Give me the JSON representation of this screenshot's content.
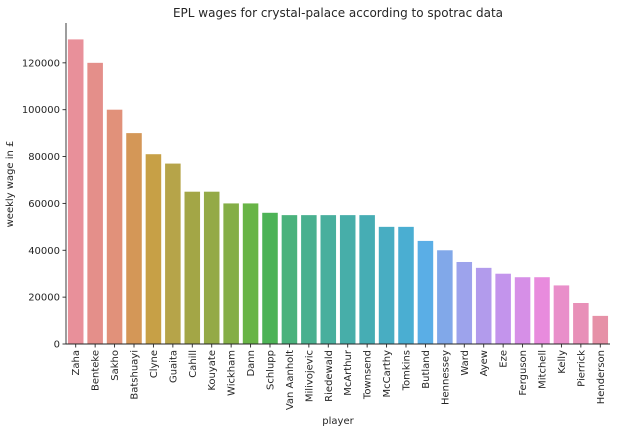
{
  "chart_data": {
    "type": "bar",
    "title": "EPL wages for crystal-palace according to spotrac data",
    "xlabel": "player",
    "ylabel": "weekly wage in £",
    "ylim": [
      0,
      137000
    ],
    "yticks": [
      0,
      20000,
      40000,
      60000,
      80000,
      100000,
      120000
    ],
    "grid": false,
    "categories": [
      "Zaha",
      "Benteke",
      "Sakho",
      "Batshuayi",
      "Clyne",
      "Guaita",
      "Cahill",
      "Kouyate",
      "Wickham",
      "Dann",
      "Schlupp",
      "Van Aanholt",
      "Milivojevic",
      "Riedewald",
      "McArthur",
      "Townsend",
      "McCarthy",
      "Tomkins",
      "Butland",
      "Hennessey",
      "Ward",
      "Ayew",
      "Eze",
      "Ferguson",
      "Mitchell",
      "Kelly",
      "Pierrick",
      "Henderson"
    ],
    "values": [
      130000,
      120000,
      100000,
      90000,
      81000,
      77000,
      65000,
      65000,
      60000,
      60000,
      56000,
      55000,
      55000,
      55000,
      55000,
      55000,
      50000,
      50000,
      44000,
      40000,
      35000,
      32500,
      30000,
      28500,
      28500,
      25000,
      17500,
      12000
    ],
    "colors": [
      "#e8909a",
      "#e48f8a",
      "#e1917a",
      "#d49757",
      "#c7a046",
      "#b6a449",
      "#a3a646",
      "#94aa46",
      "#84ae46",
      "#68b446",
      "#4db356",
      "#4ab27c",
      "#49b08f",
      "#48af9d",
      "#47aea9",
      "#46adb4",
      "#48adc2",
      "#4aaed2",
      "#5aaee6",
      "#81a8e9",
      "#9da3ec",
      "#b29bec",
      "#c394ec",
      "#d68fe7",
      "#e88bdd",
      "#e98fca",
      "#e890b8",
      "#e691a7"
    ]
  }
}
